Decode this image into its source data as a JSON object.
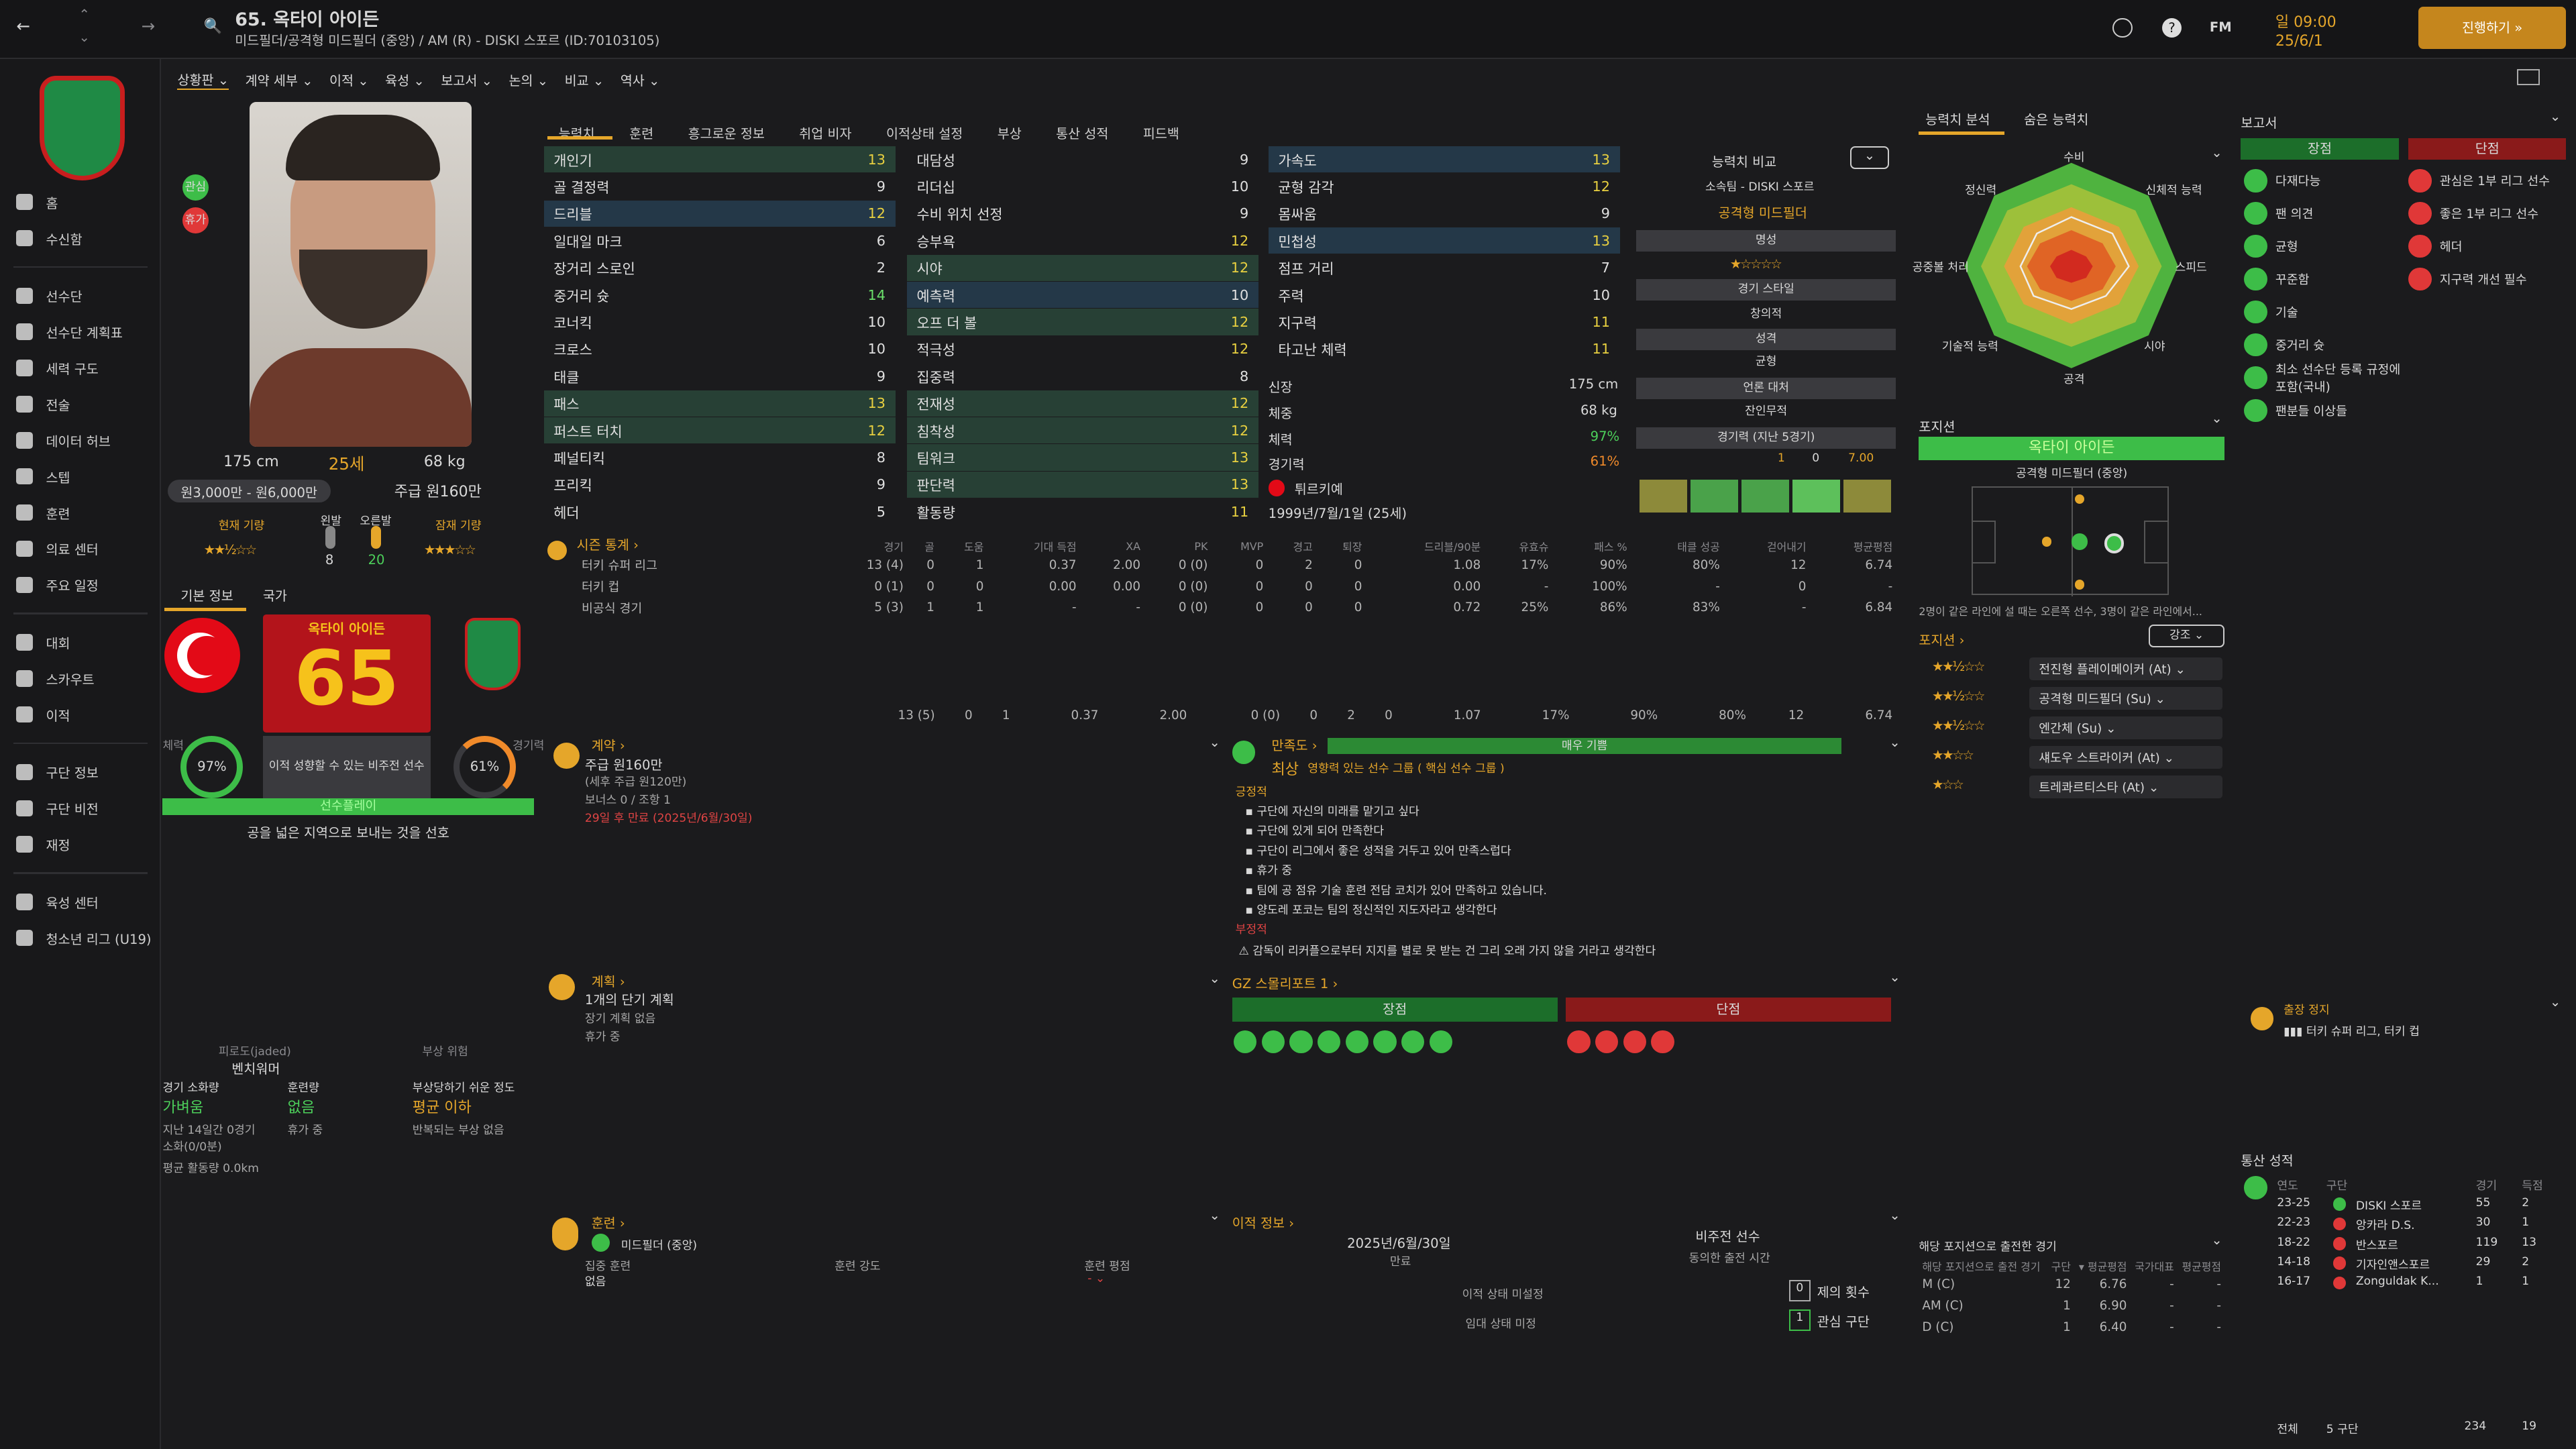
{
  "header": {
    "title": "65. 옥타이 아이든",
    "subtitle": "미드필더/공격형 미드필더 (중앙) / AM (R) - DISKI 스포르 (ID:70103105)",
    "date_day": "일 09:00",
    "date": "25/6/1",
    "continue": "진행하기 »",
    "fm": "FM"
  },
  "nav": [
    "홈",
    "수신함",
    "선수단",
    "선수단 계획표",
    "세력 구도",
    "전술",
    "데이터 허브",
    "스텝",
    "훈련",
    "의료 센터",
    "주요 일정",
    "대회",
    "스카우트",
    "이적",
    "구단 정보",
    "구단 비전",
    "재정",
    "육성 센터",
    "청소년 리그 (U19)"
  ],
  "subtabs": [
    "상황판 ⌄",
    "계약 세부 ⌄",
    "이적 ⌄",
    "육성 ⌄",
    "보고서 ⌄",
    "논의 ⌄",
    "비교 ⌄",
    "역사 ⌄"
  ],
  "tabs": [
    "능력치",
    "훈련",
    "흥그로운 정보",
    "취업 비자",
    "이적상태 설정",
    "부상",
    "통산 성적",
    "피드백"
  ],
  "player": {
    "height": "175 cm",
    "age": "25세",
    "weight": "68 kg",
    "value": "원3,000만 - 원6,000만",
    "wage": "주급 원160만",
    "cur_ab": "현재 기량",
    "pot_ab": "잠재 기량",
    "right_foot": "왼발",
    "left_foot": "오른발",
    "rf_val": "8",
    "lf_val": "20",
    "badge1": "관심",
    "badge2": "휴가"
  },
  "card": {
    "tab1": "기본 정보",
    "tab2": "국가",
    "name": "옥타이 아이든",
    "ca": "65",
    "desc": "이적 성향할 수 있는 비주전 선수",
    "fit_label": "체력",
    "fit": "97%",
    "sharp_label": "경기력",
    "sharp": "61%",
    "style": "선수플레이",
    "trait": "공을 넓은 지역으로 보내는 것을 선호"
  },
  "lower_left": {
    "h1": "피로도(jaded)",
    "v1": "벤치워머",
    "h2": "부상 위험",
    "r1a": "경기 소화량",
    "r1b": "가벼움",
    "r2a": "훈련량",
    "r2b": "없음",
    "r3a": "부상당하기 쉬운 정도",
    "r3b": "평균 이하",
    "n1": "지난 14일간 0경기",
    "n1b": "소화(0/0분)",
    "n2": "휴가 중",
    "n3": "반복되는 부상 없음",
    "n4": "평균 활동량 0.0km"
  },
  "tech": [
    [
      "개인기",
      "13"
    ],
    [
      "골 결정력",
      "9"
    ],
    [
      "드리블",
      "12"
    ],
    [
      "일대일 마크",
      "6"
    ],
    [
      "장거리 스로인",
      "2"
    ],
    [
      "중거리 슛",
      "14"
    ],
    [
      "코너킥",
      "10"
    ],
    [
      "크로스",
      "10"
    ],
    [
      "태클",
      "9"
    ],
    [
      "패스",
      "13"
    ],
    [
      "퍼스트 터치",
      "12"
    ],
    [
      "페널티킥",
      "8"
    ],
    [
      "프리킥",
      "9"
    ],
    [
      "헤더",
      "5"
    ]
  ],
  "mental": [
    [
      "대담성",
      "9"
    ],
    [
      "리더십",
      "10"
    ],
    [
      "수비 위치 선정",
      "9"
    ],
    [
      "승부욕",
      "12"
    ],
    [
      "시야",
      "12"
    ],
    [
      "예측력",
      "10"
    ],
    [
      "오프 더 볼",
      "12"
    ],
    [
      "적극성",
      "12"
    ],
    [
      "집중력",
      "8"
    ],
    [
      "전재성",
      "12"
    ],
    [
      "침착성",
      "12"
    ],
    [
      "팀워크",
      "13"
    ],
    [
      "판단력",
      "13"
    ],
    [
      "활동량",
      "11"
    ]
  ],
  "physical": [
    [
      "가속도",
      "13"
    ],
    [
      "균형 감각",
      "12"
    ],
    [
      "몸싸움",
      "9"
    ],
    [
      "민첩성",
      "13"
    ],
    [
      "점프 거리",
      "7"
    ],
    [
      "주력",
      "10"
    ],
    [
      "지구력",
      "11"
    ],
    [
      "타고난 체력",
      "11"
    ]
  ],
  "info": {
    "cmp_label": "능력치 비교",
    "club": "소속팀 - DISKI 스포르",
    "pos": "공격형 미드필더",
    "fame": "명성",
    "play_style": "경기 스타일",
    "ps_val": "창의적",
    "personality": "성격",
    "per_val": "균형",
    "media": "언론 대처",
    "media_val": "잔인무적",
    "form": "경기력 (지난 5경기)",
    "rating_a": "1",
    "rating_b": "0",
    "rating_c": "7.00",
    "height_l": "신장",
    "height_v": "175 cm",
    "weight_l": "체중",
    "weight_v": "68 kg",
    "cond_l": "체력",
    "cond_v": "97%",
    "sharp_l": "경기력",
    "sharp_v": "61%",
    "nation": "튀르키예",
    "dob": "1999년/7월/1일 (25세)"
  },
  "season": {
    "title": "시즌 통계 ›",
    "cols": [
      "경기",
      "골",
      "도움",
      "기대 득점",
      "XA",
      "PK",
      "MVP",
      "경고",
      "퇴장",
      "드리블/90분",
      "유효슈",
      "패스 %",
      "태클 성공",
      "걷어내기",
      "평균평점"
    ],
    "rows": [
      [
        "터키 슈퍼 리그",
        "13 (4)",
        "0",
        "1",
        "0.37",
        "2.00",
        "0 (0)",
        "0",
        "2",
        "0",
        "1.08",
        "17%",
        "90%",
        "80%",
        "12",
        "6.74"
      ],
      [
        "터키 컵",
        "0 (1)",
        "0",
        "0",
        "0.00",
        "0.00",
        "0 (0)",
        "0",
        "0",
        "0",
        "0.00",
        "-",
        "100%",
        "-",
        "0",
        "-"
      ],
      [
        "비공식 경기",
        "5 (3)",
        "1",
        "1",
        "-",
        "-",
        "0 (0)",
        "0",
        "0",
        "0",
        "0.72",
        "25%",
        "86%",
        "83%",
        "-",
        "6.84"
      ]
    ],
    "total": [
      "13 (5)",
      "0",
      "1",
      "0.37",
      "2.00",
      "0 (0)",
      "0",
      "2",
      "0",
      "1.07",
      "17%",
      "90%",
      "80%",
      "12",
      "6.74"
    ]
  },
  "contract": {
    "title": "계약 ›",
    "wage": "주급 원160만",
    "wage_sub": "(세후 주급 원120만)",
    "bonus": "보너스 0 / 조항 1",
    "expiry": "29일 후 만료 (2025년/6월/30일)"
  },
  "morale": {
    "title": "만족도 ›",
    "bar": "매우 기쁨",
    "level": "최상",
    "level_desc": "영향력 있는 선수 그룹 ( 핵심 선수 그룹 )",
    "pos_title": "긍정적",
    "items": [
      "구단에 자신의 미래를 맡기고 싶다",
      "구단에 있게 되어 만족한다",
      "구단이 리그에서 좋은 성적을 거두고 있어 만족스럽다",
      "휴가 중",
      "팀에 공 점유 기술 훈련 전담 코치가 있어 만족하고 있습니다.",
      "양도레 포코는 팀의 정신적인 지도자라고 생각한다"
    ],
    "neg_title": "부정적",
    "neg_item": "감독이 리커플으로부터 지지를 별로 못 받는 건 그리 오래 가지 않을 거라고 생각한다"
  },
  "plan": {
    "title": "계획 ›",
    "short": "1개의 단기 계획",
    "long": "장기 계획 없음",
    "holiday": "휴가 중"
  },
  "scout": {
    "title": "GZ 스몰리포트 1 ›",
    "pros": "장점",
    "cons": "단점"
  },
  "training": {
    "title": "훈련 ›",
    "pos": "미드필더 (중앙)",
    "h1": "집중 훈련",
    "v1": "없음",
    "h2": "훈련 강도",
    "h3": "훈련 평점",
    "v3": "- ⌄"
  },
  "transfer": {
    "title": "이적 정보 ›",
    "date": "2025년/6월/30일",
    "date_l": "만료",
    "status": "비주전 선수",
    "status_l": "동의한 출전 시간",
    "st1": "이적 상태 미설정",
    "st2": "임대 상태 미정",
    "offers": "제의 횟수",
    "offers_v": "0",
    "interest": "관심 구단",
    "interest_v": "1"
  },
  "radar": {
    "tab1": "능력치 분석",
    "tab2": "숨은 능력치",
    "labels": [
      "수비",
      "신체적 능력",
      "스피드",
      "시야",
      "공격",
      "기술적 능력",
      "공중볼 처리",
      "정신력"
    ]
  },
  "position": {
    "title": "포지션",
    "name": "옥타이 아이든",
    "pos": "공격형 미드필더 (중앙)",
    "note": "2명이 같은 라인에 설 때는 오른쪽 선수, 3명이 같은 라인에서...",
    "roles_title": "포지션 ›",
    "mode": "강조 ⌄",
    "roles": [
      "전진형 플레이메이커 (At) ⌄",
      "공격형 미드필더 (Su) ⌄",
      "엔간체 (Su) ⌄",
      "섀도우 스트라이커 (At) ⌄",
      "트레콰르티스타 (At) ⌄"
    ]
  },
  "apps": {
    "title": "해당 포지션으로 출전한 경기",
    "h1": "해당 포지션으로 출전 경기",
    "h2": "구단",
    "h3": "▾ 평균평점",
    "h4": "국가대표",
    "h5": "평균평점",
    "rows": [
      [
        "M (C)",
        "12",
        "6.76",
        "-",
        "-"
      ],
      [
        "AM (C)",
        "1",
        "6.90",
        "-",
        "-"
      ],
      [
        "D (C)",
        "1",
        "6.40",
        "-",
        "-"
      ]
    ]
  },
  "report": {
    "title": "보고서",
    "pros": "장점",
    "cons": "단점",
    "pro_items": [
      "다재다능",
      "팬 의견",
      "균형",
      "꾸준함",
      "기술",
      "중거리 슛",
      "최소 선수단 등록 규정에 포함(국내)",
      "팬분들 이상들"
    ],
    "con_items": [
      "관심은 1부 리그 선수",
      "좋은 1부 리그 선수",
      "헤더",
      "지구력 개선 필수"
    ],
    "ban_title": "출장 정지",
    "ban_item": "터키 슈퍼 리그, 터키 컵"
  },
  "career": {
    "title": "통산 성적",
    "h1": "연도",
    "h2": "구단",
    "h3": "경기",
    "h4": "득점",
    "rows": [
      [
        "23-25",
        "DISKI 스포르",
        "55",
        "2"
      ],
      [
        "22-23",
        "앙카라 D.S.",
        "30",
        "1"
      ],
      [
        "18-22",
        "반스포르",
        "119",
        "13"
      ],
      [
        "14-18",
        "기자인앤스포르",
        "29",
        "2"
      ],
      [
        "16-17",
        "Zonguldak K...",
        "1",
        "1"
      ]
    ],
    "total_l": "전체",
    "total_c": "5 구단",
    "total_g": "234",
    "total_s": "19"
  },
  "colors": {
    "accent": "#e5a62a",
    "good": "#3dbd48",
    "bad": "#e03838"
  }
}
